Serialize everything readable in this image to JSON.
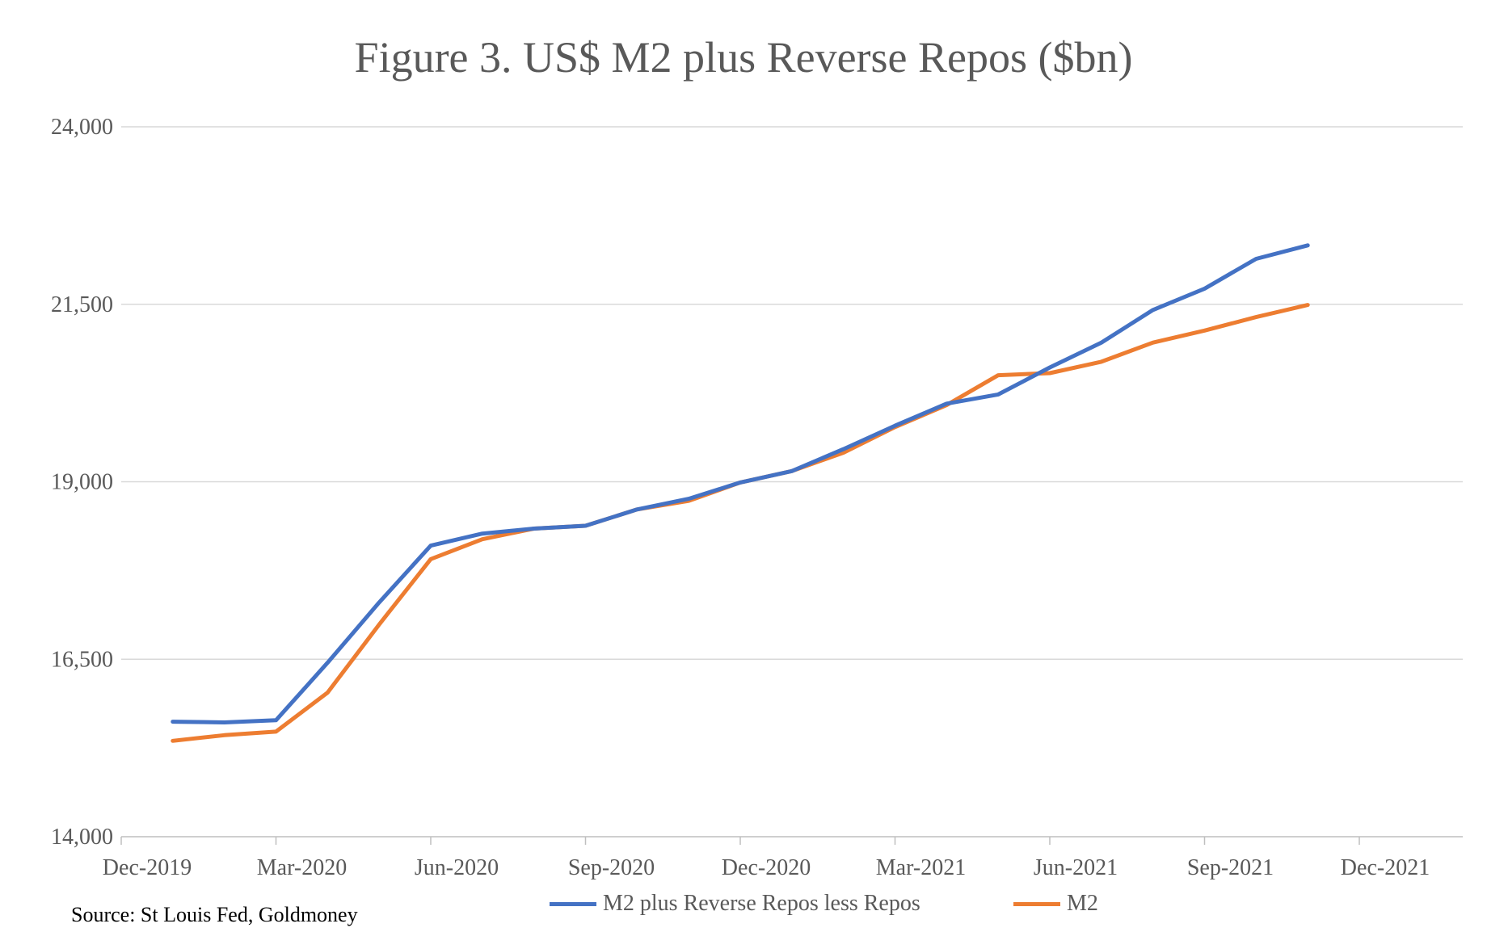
{
  "chart_data": {
    "type": "line",
    "title": "Figure 3. US$ M2 plus Reverse Repos ($bn)",
    "source": "Source: St Louis Fed, Goldmoney",
    "y_ticks": [
      "24,000",
      "21,500",
      "19,000",
      "16,500",
      "14,000"
    ],
    "y_tick_values": [
      24000,
      21500,
      19000,
      16500,
      14000
    ],
    "ylim": [
      14000,
      24000
    ],
    "x_ticks": [
      "Dec-2019",
      "Mar-2020",
      "Jun-2020",
      "Sep-2020",
      "Dec-2020",
      "Mar-2021",
      "Jun-2021",
      "Sep-2021",
      "Dec-2021"
    ],
    "x": [
      "2020-01",
      "2020-02",
      "2020-03",
      "2020-04",
      "2020-05",
      "2020-06",
      "2020-07",
      "2020-08",
      "2020-09",
      "2020-10",
      "2020-11",
      "2020-12",
      "2021-01",
      "2021-02",
      "2021-03",
      "2021-04",
      "2021-05",
      "2021-06",
      "2021-07",
      "2021-08",
      "2021-09",
      "2021-10",
      "2021-11"
    ],
    "grid": true,
    "legend_position": "bottom",
    "series": [
      {
        "name": "M2 plus Reverse Repos less Repos",
        "color": "#4472C4",
        "values": [
          15620,
          15610,
          15640,
          16450,
          17300,
          18100,
          18270,
          18340,
          18380,
          18610,
          18760,
          18990,
          19150,
          19460,
          19790,
          20100,
          20230,
          20610,
          20960,
          21420,
          21720,
          22140,
          22330
        ]
      },
      {
        "name": "M2",
        "color": "#ED7D31",
        "values": [
          15350,
          15430,
          15480,
          16030,
          16990,
          17910,
          18190,
          18340,
          18380,
          18610,
          18730,
          18990,
          19150,
          19410,
          19770,
          20080,
          20500,
          20530,
          20690,
          20960,
          21130,
          21320,
          21490
        ]
      }
    ]
  }
}
